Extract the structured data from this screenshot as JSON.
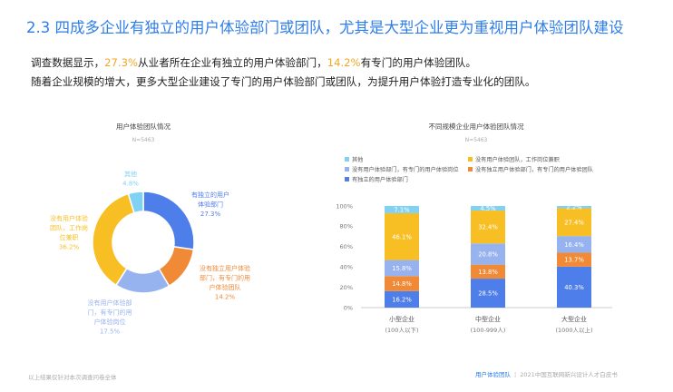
{
  "header": {
    "title": "2.3 四成多企业有独立的用户体验部门或团队，尤其是大型企业更为重视用户体验团队建设"
  },
  "intro": {
    "line1_pre": "调查数据显示，",
    "line1_val1": "27.3%",
    "line1_mid": "从业者所在企业有独立的用户体验部门，",
    "line1_val2": "14.2%",
    "line1_post": "有专门的用户体验团队。",
    "line2": "随着企业规模的增大，更多大型企业建设了专门的用户体验部门或团队，为提升用户体验打造专业化的团队。"
  },
  "colors": {
    "blue": "#4e7ee9",
    "orange": "#f08a37",
    "lightblue": "#96b3ef",
    "yellow": "#f8bf25",
    "cyan": "#7fd2f3",
    "title_blue": "#2e7ee8",
    "highlight": "#f5a623"
  },
  "chart_data": [
    {
      "type": "pie",
      "variant": "donut",
      "title": "用户体验团队情况",
      "subtitle": "N=5463",
      "slices": [
        {
          "label_lines": [
            "有独立的用户",
            "体验部门"
          ],
          "value": 27.3,
          "value_text": "27.3%",
          "color": "#4e7ee9"
        },
        {
          "label_lines": [
            "没有独立用户体验",
            "部门，有专门的用",
            "户体验团队"
          ],
          "value": 14.2,
          "value_text": "14.2%",
          "color": "#f08a37"
        },
        {
          "label_lines": [
            "没有用户体验部",
            "门，有专门的用",
            "户体验岗位"
          ],
          "value": 17.5,
          "value_text": "17.5%",
          "color": "#96b3ef"
        },
        {
          "label_lines": [
            "没有用户体验",
            "团队，工作岗",
            "位兼职"
          ],
          "value": 36.2,
          "value_text": "36.2%",
          "color": "#f8bf25"
        },
        {
          "label_lines": [
            "其他"
          ],
          "value": 4.8,
          "value_text": "4.8%",
          "color": "#7fd2f3"
        }
      ]
    },
    {
      "type": "bar",
      "stacked": true,
      "percent": true,
      "title": "不同规模企业用户体验团队情况",
      "subtitle": "N=5463",
      "ylim": [
        0,
        100
      ],
      "yticks": [
        "0%",
        "20%",
        "40%",
        "60%",
        "80%",
        "100%"
      ],
      "categories": [
        {
          "name": "小型企业",
          "sub": "(100人以下)"
        },
        {
          "name": "中型企业",
          "sub": "(100-999人)"
        },
        {
          "name": "大型企业",
          "sub": "(1000人以上)"
        }
      ],
      "legend_position": "top-left",
      "series": [
        {
          "name": "有独立的用户体验部门",
          "color": "#4e7ee9",
          "values": [
            16.2,
            28.5,
            40.3
          ],
          "labels": [
            "16.2%",
            "28.5%",
            "40.3%"
          ]
        },
        {
          "name": "没有独立用户体验部门，有专门的用户体验团队",
          "color": "#f08a37",
          "values": [
            14.8,
            13.8,
            13.7
          ],
          "labels": [
            "14.8%",
            "13.8%",
            "13.7%"
          ]
        },
        {
          "name": "没有用户体验部门，有专门的用户体验岗位",
          "color": "#96b3ef",
          "values": [
            15.8,
            20.8,
            16.4
          ],
          "labels": [
            "15.8%",
            "20.8%",
            "16.4%"
          ]
        },
        {
          "name": "没有用户体验团队，工作岗位兼职",
          "color": "#f8bf25",
          "values": [
            46.1,
            32.4,
            27.4
          ],
          "labels": [
            "46.1%",
            "32.4%",
            "27.4%"
          ]
        },
        {
          "name": "其他",
          "color": "#7fd2f3",
          "values": [
            7.1,
            4.5,
            2.2
          ],
          "labels": [
            "7.1%",
            "4.5%",
            "2.2%"
          ]
        }
      ]
    }
  ],
  "footer": {
    "note": "以上结果仅针对本次调查问卷全体",
    "dept": "用户体验团队",
    "separator": "|",
    "report": "2021中国互联网新兴设计人才白皮书"
  }
}
